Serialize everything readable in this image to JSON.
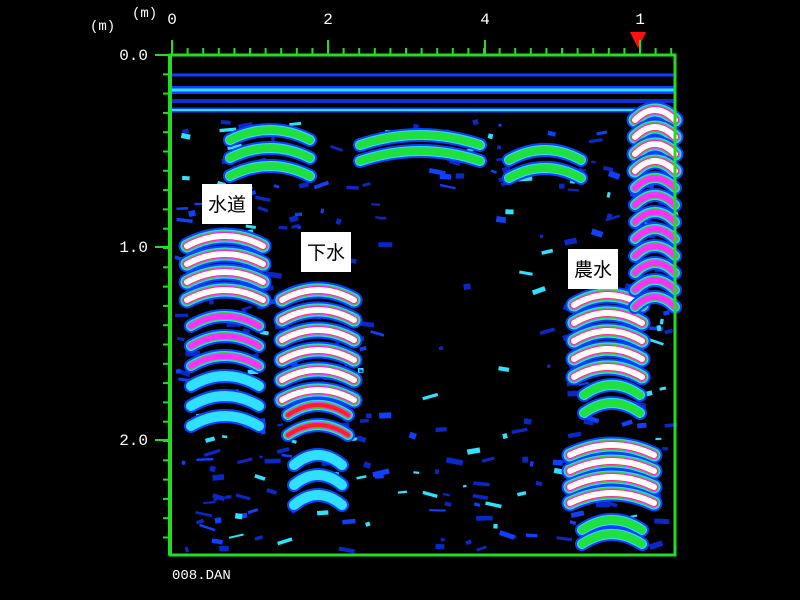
{
  "axes": {
    "x_unit": "(m)",
    "y_unit": "(m)",
    "x_ticks": [
      "0",
      "2",
      "4",
      "1"
    ],
    "y_ticks": [
      "0.0",
      "1.0",
      "2.0"
    ]
  },
  "labels": [
    "水道",
    "下水",
    "農水"
  ],
  "footer": "008.DAN"
}
